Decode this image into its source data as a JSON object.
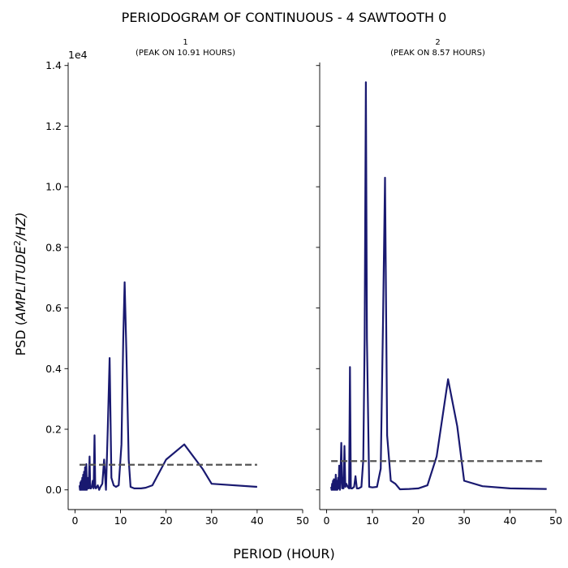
{
  "figure": {
    "title": "PERIODOGRAM OF CONTINUOUS - 4 SAWTOOTH 0",
    "xlabel": "PERIOD (HOUR)",
    "ylabel_prefix": "PSD (",
    "ylabel_italic": "AMPLITUDE",
    "ylabel_exp": "2",
    "ylabel_suffix": "/HZ)",
    "y_offset_label": "1e4"
  },
  "colors": {
    "series": "#191970",
    "threshold": "#555555"
  },
  "chart_data": [
    {
      "type": "line",
      "title_line1": "1",
      "title_line2": "(PEAK ON 10.91 HOURS)",
      "xlim": [
        -1.5,
        50
      ],
      "ylim": [
        -0.065,
        1.41
      ],
      "y_scale_exponent": 4,
      "xticks": [
        0,
        10,
        20,
        30,
        40,
        50
      ],
      "yticks": [
        0.0,
        0.2,
        0.4,
        0.6,
        0.8,
        1.0,
        1.2,
        1.4
      ],
      "ytick_labels": [
        "0.0",
        "0.2",
        "0.4",
        "0.6",
        "0.8",
        "1.0",
        "1.2",
        "1.4"
      ],
      "threshold": 0.083,
      "threshold_x": [
        1,
        40
      ],
      "series": [
        {
          "x": [
            1.0,
            1.1,
            1.2,
            1.3,
            1.4,
            1.5,
            1.6,
            1.7,
            1.8,
            1.9,
            2.0,
            2.1,
            2.2,
            2.35,
            2.5,
            2.6,
            2.7,
            2.8,
            2.9,
            3.0,
            3.2,
            3.35,
            3.5,
            3.7,
            3.9,
            4.1,
            4.3,
            4.45,
            4.6,
            4.8,
            5.0,
            5.3,
            5.6,
            6.0,
            6.4,
            6.8,
            7.2,
            7.6,
            8.0,
            8.5,
            9.0,
            9.6,
            10.2,
            10.6,
            10.91,
            11.3,
            11.8,
            12.2,
            13.0,
            14.5,
            15.5,
            17.0,
            20.0,
            24.0,
            28.0,
            30.0,
            40.0
          ],
          "y": [
            0.015,
            0.0,
            0.025,
            0.0,
            0.03,
            0.0,
            0.04,
            0.0,
            0.05,
            0.0,
            0.06,
            0.0,
            0.075,
            0.0,
            0.085,
            0.0,
            0.02,
            0.005,
            0.04,
            0.005,
            0.11,
            0.005,
            0.005,
            0.01,
            0.03,
            0.005,
            0.18,
            0.01,
            0.005,
            0.01,
            0.015,
            0.0,
            0.01,
            0.02,
            0.1,
            0.0,
            0.2,
            0.435,
            0.04,
            0.015,
            0.01,
            0.015,
            0.15,
            0.5,
            0.685,
            0.45,
            0.1,
            0.01,
            0.005,
            0.005,
            0.007,
            0.015,
            0.1,
            0.15,
            0.07,
            0.02,
            0.01
          ]
        }
      ]
    },
    {
      "type": "line",
      "title_line1": "2",
      "title_line2": "(PEAK ON 8.57 HOURS)",
      "xlim": [
        -1.5,
        50
      ],
      "ylim": [
        -0.065,
        1.41
      ],
      "y_scale_exponent": 4,
      "xticks": [
        0,
        10,
        20,
        30,
        40,
        50
      ],
      "yticks": [
        0.0,
        0.2,
        0.4,
        0.6,
        0.8,
        1.0,
        1.2,
        1.4
      ],
      "threshold": 0.095,
      "threshold_x": [
        1,
        47
      ],
      "series": [
        {
          "x": [
            1.0,
            1.1,
            1.2,
            1.3,
            1.4,
            1.5,
            1.6,
            1.7,
            1.8,
            1.9,
            2.0,
            2.1,
            2.2,
            2.35,
            2.5,
            2.6,
            2.75,
            2.9,
            3.0,
            3.2,
            3.4,
            3.6,
            3.7,
            3.9,
            4.1,
            4.3,
            4.6,
            4.9,
            5.1,
            5.3,
            5.6,
            6.0,
            6.3,
            6.6,
            7.0,
            7.6,
            8.0,
            8.3,
            8.57,
            8.8,
            9.3,
            10.0,
            11.0,
            11.8,
            12.3,
            12.75,
            13.2,
            14.0,
            15.0,
            16.0,
            18.0,
            20.0,
            22.0,
            24.0,
            26.5,
            28.5,
            30.0,
            34.0,
            40.0,
            48.0
          ],
          "y": [
            0.01,
            0.0,
            0.02,
            0.0,
            0.03,
            0.0,
            0.035,
            0.0,
            0.03,
            0.0,
            0.05,
            0.0,
            0.03,
            0.0,
            0.04,
            0.005,
            0.08,
            0.0,
            0.025,
            0.155,
            0.005,
            0.04,
            0.005,
            0.145,
            0.01,
            0.02,
            0.01,
            0.005,
            0.405,
            0.005,
            0.005,
            0.01,
            0.045,
            0.005,
            0.005,
            0.01,
            0.1,
            0.5,
            1.345,
            0.5,
            0.01,
            0.008,
            0.01,
            0.07,
            0.55,
            1.03,
            0.18,
            0.03,
            0.02,
            0.002,
            0.003,
            0.005,
            0.015,
            0.11,
            0.365,
            0.21,
            0.03,
            0.012,
            0.005,
            0.003
          ]
        }
      ]
    }
  ]
}
